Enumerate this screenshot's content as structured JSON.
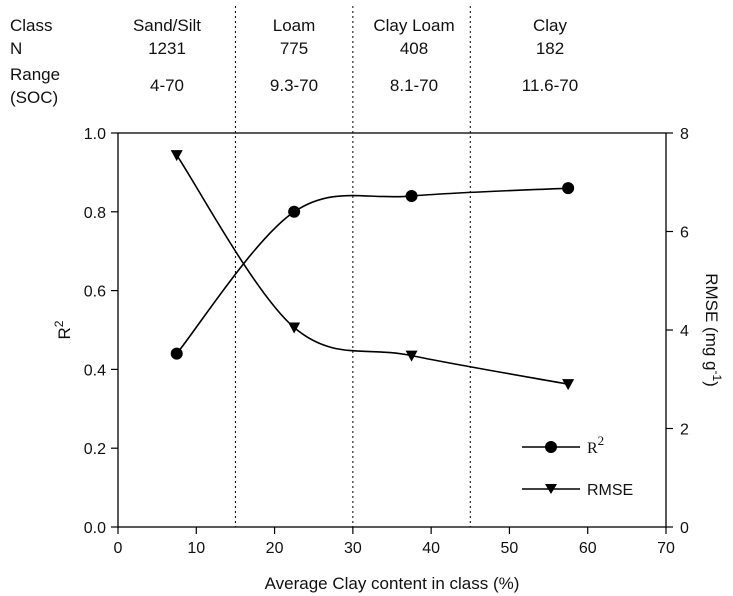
{
  "chart_data": {
    "type": "line",
    "xlabel": "Average Clay content in class (%)",
    "ylabel": "R",
    "ylabel_sup": "2",
    "y2label": "RMSE (mg g",
    "y2label_sup": "-1",
    "y2label_close": ")",
    "xlim": [
      0,
      70
    ],
    "ylim": [
      0,
      1.0
    ],
    "y2lim": [
      0,
      8
    ],
    "xticks": [
      "0",
      "10",
      "20",
      "30",
      "40",
      "50",
      "60",
      "70"
    ],
    "yticks": [
      "0.0",
      "0.2",
      "0.4",
      "0.6",
      "0.8",
      "1.0"
    ],
    "y2ticks": [
      "0",
      "2",
      "4",
      "6",
      "8"
    ],
    "class_boundaries": [
      15,
      30,
      45
    ],
    "grid": false,
    "legend_position": "bottom-right",
    "series": [
      {
        "name": "R",
        "name_sup": "2",
        "axis": "left",
        "marker": "circle",
        "x": [
          7.5,
          22.5,
          37.5,
          57.5
        ],
        "y": [
          0.44,
          0.8,
          0.84,
          0.86
        ]
      },
      {
        "name": "RMSE",
        "axis": "right",
        "marker": "triangle-down",
        "x": [
          7.5,
          22.5,
          37.5,
          57.5
        ],
        "y": [
          7.55,
          4.05,
          3.48,
          2.9
        ]
      }
    ]
  },
  "header": {
    "row_labels": [
      "Class",
      "N",
      "Range",
      "(SOC)"
    ],
    "classes": [
      {
        "name": "Sand/Silt",
        "n": "1231",
        "range": "4-70"
      },
      {
        "name": "Loam",
        "n": "775",
        "range": "9.3-70"
      },
      {
        "name": "Clay Loam",
        "n": "408",
        "range": "8.1-70"
      },
      {
        "name": "Clay",
        "n": "182",
        "range": "11.6-70"
      }
    ]
  }
}
